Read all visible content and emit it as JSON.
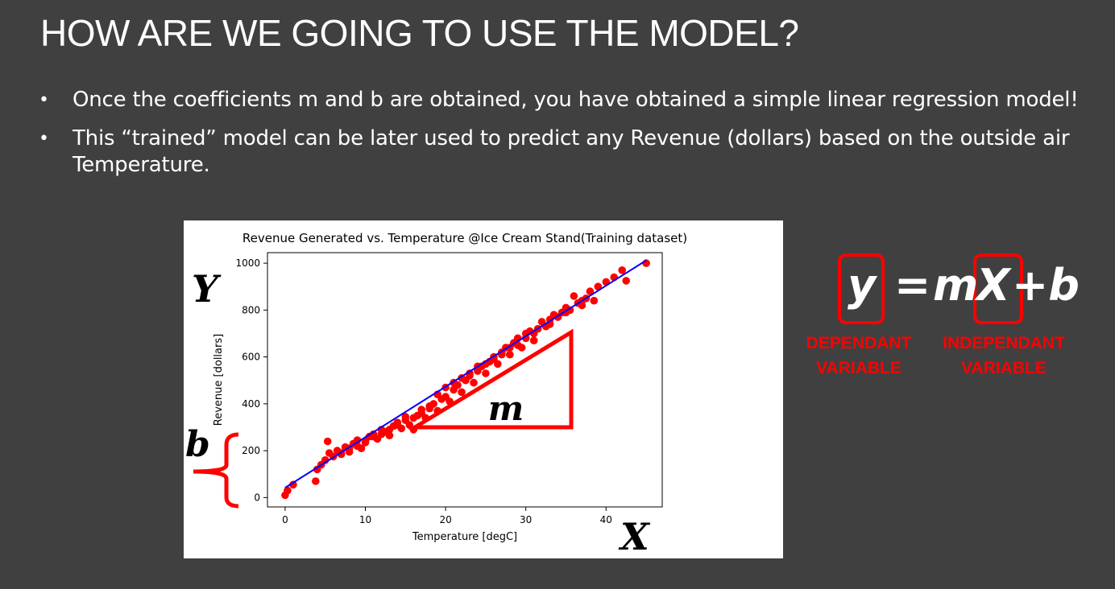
{
  "slide": {
    "title": "HOW ARE WE GOING TO USE THE MODEL?",
    "bullets": [
      "Once the coefficients m and b are obtained, you have obtained a simple linear regression model!",
      "This “trained” model can be later used to predict any Revenue (dollars) based on the outside air Temperature."
    ],
    "bullet_symbol": "•"
  },
  "annotations": {
    "y_letter": "Y",
    "x_letter": "X",
    "m_letter": "m",
    "b_letter": "b",
    "highlight_color": "#ff0000"
  },
  "equation": {
    "y": "y",
    "equals": "=",
    "m": "m",
    "x": "X",
    "plus_b": "+b",
    "dependent_label_line1": "DEPENDANT",
    "dependent_label_line2": "VARIABLE",
    "independent_label_line1": "INDEPENDANT",
    "independent_label_line2": "VARIABLE"
  },
  "chart_data": {
    "type": "scatter",
    "title": "Revenue Generated vs. Temperature @Ice Cream Stand(Training dataset)",
    "xlabel": "Temperature [degC]",
    "ylabel": "Revenue [dollars]",
    "xlim": [
      -2.2,
      47
    ],
    "ylim": [
      -40,
      1045
    ],
    "xticks": [
      0,
      10,
      20,
      30,
      40
    ],
    "yticks": [
      0,
      200,
      400,
      600,
      800,
      1000
    ],
    "grid": false,
    "point_color": "#ff0000",
    "line_color": "#0000ff",
    "regression_line": {
      "x": [
        0,
        45
      ],
      "y": [
        42,
        1012
      ]
    },
    "points": [
      [
        0,
        10
      ],
      [
        0.3,
        30
      ],
      [
        1,
        55
      ],
      [
        3.8,
        70
      ],
      [
        4,
        120
      ],
      [
        4.5,
        140
      ],
      [
        5,
        160
      ],
      [
        5.3,
        240
      ],
      [
        5.5,
        190
      ],
      [
        6,
        175
      ],
      [
        6.5,
        200
      ],
      [
        7,
        185
      ],
      [
        7.5,
        215
      ],
      [
        8,
        195
      ],
      [
        8.5,
        230
      ],
      [
        9,
        245
      ],
      [
        9.5,
        210
      ],
      [
        10,
        240
      ],
      [
        10.5,
        260
      ],
      [
        11,
        270
      ],
      [
        11.5,
        250
      ],
      [
        12,
        290
      ],
      [
        12.5,
        280
      ],
      [
        13,
        265
      ],
      [
        13.5,
        305
      ],
      [
        14,
        320
      ],
      [
        14.5,
        295
      ],
      [
        15,
        330
      ],
      [
        15.5,
        310
      ],
      [
        16,
        290
      ],
      [
        16.5,
        350
      ],
      [
        17,
        360
      ],
      [
        17.5,
        340
      ],
      [
        18,
        380
      ],
      [
        18.5,
        400
      ],
      [
        19,
        370
      ],
      [
        19.5,
        420
      ],
      [
        20,
        430
      ],
      [
        20.5,
        410
      ],
      [
        21,
        460
      ],
      [
        21.5,
        480
      ],
      [
        22,
        450
      ],
      [
        22.5,
        500
      ],
      [
        23,
        520
      ],
      [
        23.5,
        490
      ],
      [
        24,
        540
      ],
      [
        24.5,
        560
      ],
      [
        25,
        530
      ],
      [
        25.5,
        580
      ],
      [
        26,
        600
      ],
      [
        26.5,
        570
      ],
      [
        27,
        620
      ],
      [
        27.5,
        640
      ],
      [
        28,
        610
      ],
      [
        28.5,
        660
      ],
      [
        29,
        680
      ],
      [
        29.5,
        640
      ],
      [
        30,
        700
      ],
      [
        30.5,
        710
      ],
      [
        31,
        670
      ],
      [
        31.5,
        720
      ],
      [
        32,
        750
      ],
      [
        32.5,
        730
      ],
      [
        33,
        760
      ],
      [
        33.5,
        780
      ],
      [
        34,
        770
      ],
      [
        34.5,
        790
      ],
      [
        35,
        810
      ],
      [
        35.5,
        800
      ],
      [
        36,
        860
      ],
      [
        36.5,
        830
      ],
      [
        37,
        820
      ],
      [
        37.5,
        850
      ],
      [
        38,
        880
      ],
      [
        38.5,
        840
      ],
      [
        39,
        900
      ],
      [
        40,
        920
      ],
      [
        41,
        940
      ],
      [
        42,
        970
      ],
      [
        42.5,
        925
      ],
      [
        45,
        1000
      ],
      [
        20,
        470
      ],
      [
        22,
        510
      ],
      [
        24,
        560
      ],
      [
        26,
        590
      ],
      [
        28,
        640
      ],
      [
        30,
        680
      ],
      [
        18,
        390
      ],
      [
        16,
        340
      ],
      [
        14,
        310
      ],
      [
        12,
        270
      ],
      [
        10,
        235
      ],
      [
        23,
        530
      ],
      [
        25,
        570
      ],
      [
        27,
        610
      ],
      [
        29,
        650
      ],
      [
        31,
        700
      ],
      [
        33,
        740
      ],
      [
        35,
        790
      ],
      [
        37,
        840
      ],
      [
        21,
        490
      ],
      [
        19,
        440
      ],
      [
        17,
        375
      ],
      [
        15,
        345
      ],
      [
        13,
        290
      ],
      [
        11,
        260
      ],
      [
        9,
        220
      ],
      [
        7,
        190
      ],
      [
        8,
        210
      ]
    ]
  }
}
